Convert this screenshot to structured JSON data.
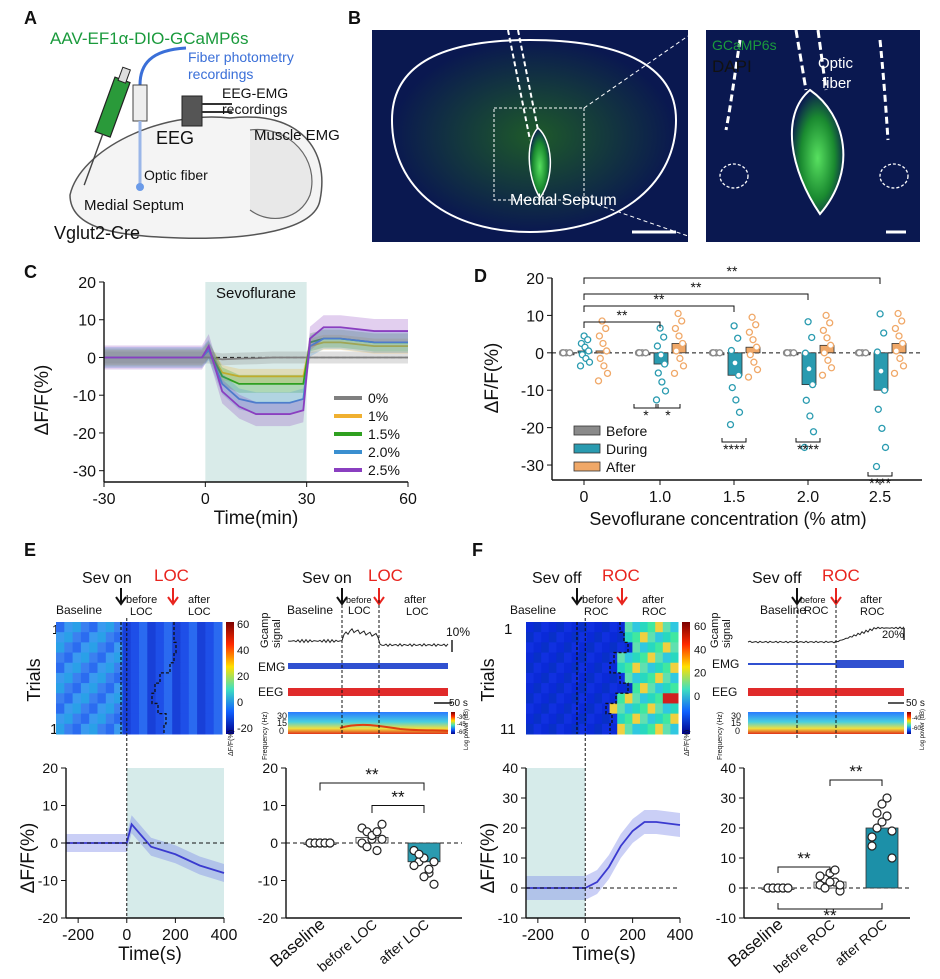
{
  "panels": {
    "A": {
      "letter": "A",
      "virus": "AAV-EF1α-DIO-GCaMP6s",
      "fiber": "Fiber photometry recordings",
      "eegemg": "EEG-EMG recordings",
      "eeg": "EEG",
      "muscle": "Muscle EMG",
      "optic": "Optic fiber",
      "septum": "Medial Septum",
      "mouse": "Vglut2-Cre"
    },
    "B": {
      "letter": "B",
      "gcamp": "GCaMP6s",
      "dapi": "DAPI",
      "optic": "Optic fiber",
      "septum": "Medial Septum"
    },
    "C": {
      "letter": "C",
      "band_label": "Sevoflurane",
      "ylabel": "ΔF/F(%)",
      "xlabel": "Time(min)",
      "legend": [
        {
          "label": "0%",
          "color": "#7f7f7f"
        },
        {
          "label": "1%",
          "color": "#f0b030"
        },
        {
          "label": "1.5%",
          "color": "#2fa020"
        },
        {
          "label": "2.0%",
          "color": "#3a8fd0"
        },
        {
          "label": "2.5%",
          "color": "#8a3fc0"
        }
      ]
    },
    "D": {
      "letter": "D",
      "ylabel": "ΔF/F(%)",
      "xlabel": "Sevoflurane concentration (% atm)",
      "legend": [
        {
          "label": "Before",
          "color": "#8a8a8a"
        },
        {
          "label": "During",
          "color": "#2a9bb0"
        },
        {
          "label": "After",
          "color": "#f0a868"
        }
      ],
      "sig_top": [
        "**",
        "**",
        "**",
        "**"
      ],
      "sig_bottom": [
        "*",
        "*",
        "****",
        "****",
        "****"
      ]
    },
    "E": {
      "letter": "E",
      "sev_on": "Sev on",
      "loc": "LOC",
      "baseline": "Baseline",
      "before_loc": "before LOC",
      "after_loc": "after LOC",
      "trials": "Trials",
      "trial_first": "1",
      "trial_last": "11",
      "colorbar_ticks": [
        "60",
        "40",
        "20",
        "0",
        "-20"
      ],
      "colorbar_label": "ΔF/F(%)",
      "gcamp": "Gcamp signal",
      "emg": "EMG",
      "eeg": "EEG",
      "scale_pct": "10%",
      "scale_time": "50 s",
      "freq_label": "Frequency (Hz)",
      "freq_ticks": [
        "30",
        "15",
        "0"
      ],
      "power_label": "Log power (dB)",
      "power_ticks": [
        "-30",
        "-45",
        "-60"
      ],
      "ylabel": "ΔF/F(%)",
      "xlabel": "Time(s)",
      "bar_labels": [
        "Baseline",
        "before LOC",
        "after LOC"
      ],
      "sig": [
        "**",
        "**"
      ]
    },
    "F": {
      "letter": "F",
      "sev_off": "Sev off",
      "roc": "ROC",
      "baseline": "Baseline",
      "before_roc": "before ROC",
      "after_roc": "after ROC",
      "trials": "Trials",
      "trial_first": "1",
      "trial_last": "11",
      "colorbar_ticks": [
        "60",
        "40",
        "20",
        "0"
      ],
      "colorbar_label": "ΔF/F(%)",
      "gcamp": "Gcamp signal",
      "emg": "EMG",
      "eeg": "EEG",
      "scale_pct": "20%",
      "scale_time": "50 s",
      "freq_label": "Frequency (Hz)",
      "freq_ticks": [
        "30",
        "15",
        "0"
      ],
      "power_label": "Log power (dB)",
      "power_ticks": [
        "-40",
        "-60"
      ],
      "ylabel": "ΔF/F(%)",
      "xlabel": "Time(s)",
      "bar_labels": [
        "Baseline",
        "before ROC",
        "after ROC"
      ],
      "sig": [
        "**",
        "**",
        "**"
      ]
    }
  },
  "chart_data": [
    {
      "type": "line",
      "title": "C",
      "xlabel": "Time(min)",
      "ylabel": "ΔF/F(%)",
      "x_ticks": [
        -30,
        0,
        30,
        60
      ],
      "y_ticks": [
        20,
        10,
        0,
        -10,
        -20,
        -30
      ],
      "xlim": [
        -30,
        60
      ],
      "ylim": [
        -33,
        20
      ],
      "shaded_band": {
        "label": "Sevoflurane",
        "x": [
          0,
          30
        ]
      },
      "x": [
        -30,
        -20,
        -10,
        -1,
        1,
        5,
        10,
        15,
        20,
        25,
        29,
        31,
        35,
        40,
        50,
        60
      ],
      "series": [
        {
          "name": "0%",
          "values": [
            0,
            0,
            0,
            0,
            0,
            -0.5,
            -0.3,
            -0.2,
            0,
            0,
            0,
            0,
            0,
            0,
            0,
            0
          ]
        },
        {
          "name": "1%",
          "values": [
            0,
            0,
            0,
            0,
            2,
            -4,
            -5,
            -5,
            -5,
            -5,
            -5,
            3,
            4,
            4,
            3,
            3
          ]
        },
        {
          "name": "1.5%",
          "values": [
            0,
            0,
            0,
            0,
            2,
            -5,
            -7,
            -7,
            -7,
            -7,
            -7,
            4,
            5,
            5,
            4,
            4
          ]
        },
        {
          "name": "2.0%",
          "values": [
            0,
            0,
            0,
            0,
            2,
            -7,
            -11,
            -12,
            -12,
            -12,
            -11,
            3,
            5,
            5,
            4,
            4
          ]
        },
        {
          "name": "2.5%",
          "values": [
            0,
            0,
            0,
            0,
            3,
            -9,
            -13,
            -15,
            -15,
            -15,
            -14,
            5,
            8,
            8,
            7,
            7
          ]
        }
      ]
    },
    {
      "type": "bar",
      "title": "D",
      "xlabel": "Sevoflurane concentration (% atm)",
      "ylabel": "ΔF/F(%)",
      "categories": [
        "0",
        "1.0",
        "1.5",
        "2.0",
        "2.5"
      ],
      "y_ticks": [
        20,
        10,
        0,
        -10,
        -20,
        -30
      ],
      "ylim": [
        -34,
        20
      ],
      "series": [
        {
          "name": "Before",
          "values": [
            0,
            0,
            0,
            0,
            0
          ]
        },
        {
          "name": "During",
          "values": [
            0.5,
            -3,
            -6,
            -8.5,
            -10
          ]
        },
        {
          "name": "After",
          "values": [
            0.5,
            2.5,
            1.5,
            2,
            2.5
          ]
        }
      ]
    },
    {
      "type": "line",
      "title": "E bottom-left",
      "xlabel": "Time(s)",
      "ylabel": "ΔF/F(%)",
      "x_ticks": [
        -200,
        0,
        200,
        400
      ],
      "y_ticks": [
        20,
        10,
        0,
        -10,
        -20
      ],
      "xlim": [
        -250,
        400
      ],
      "ylim": [
        -20,
        20
      ],
      "x": [
        -250,
        -200,
        -100,
        0,
        20,
        100,
        200,
        300,
        400
      ],
      "series": [
        {
          "name": "mean",
          "values": [
            0,
            0,
            0,
            0,
            5,
            -1,
            -3,
            -6,
            -8
          ]
        }
      ]
    },
    {
      "type": "bar",
      "title": "E bottom-right",
      "categories": [
        "Baseline",
        "before LOC",
        "after LOC"
      ],
      "y_ticks": [
        20,
        10,
        0,
        -10,
        -20
      ],
      "ylim": [
        -20,
        20
      ],
      "values": [
        0,
        1.5,
        -5
      ]
    },
    {
      "type": "line",
      "title": "F bottom-left",
      "xlabel": "Time(s)",
      "ylabel": "ΔF/F(%)",
      "x_ticks": [
        -200,
        0,
        200,
        400
      ],
      "y_ticks": [
        40,
        30,
        20,
        10,
        0,
        -10
      ],
      "xlim": [
        -250,
        400
      ],
      "ylim": [
        -10,
        40
      ],
      "x": [
        -250,
        -200,
        -100,
        0,
        50,
        100,
        150,
        200,
        250,
        300,
        400
      ],
      "series": [
        {
          "name": "mean",
          "values": [
            0,
            0,
            0,
            0,
            2,
            7,
            14,
            19,
            22,
            22,
            21
          ]
        }
      ]
    },
    {
      "type": "bar",
      "title": "F bottom-right",
      "categories": [
        "Baseline",
        "before ROC",
        "after ROC"
      ],
      "y_ticks": [
        40,
        30,
        20,
        10,
        0,
        -10
      ],
      "ylim": [
        -10,
        40
      ],
      "values": [
        0,
        2,
        20
      ]
    }
  ]
}
